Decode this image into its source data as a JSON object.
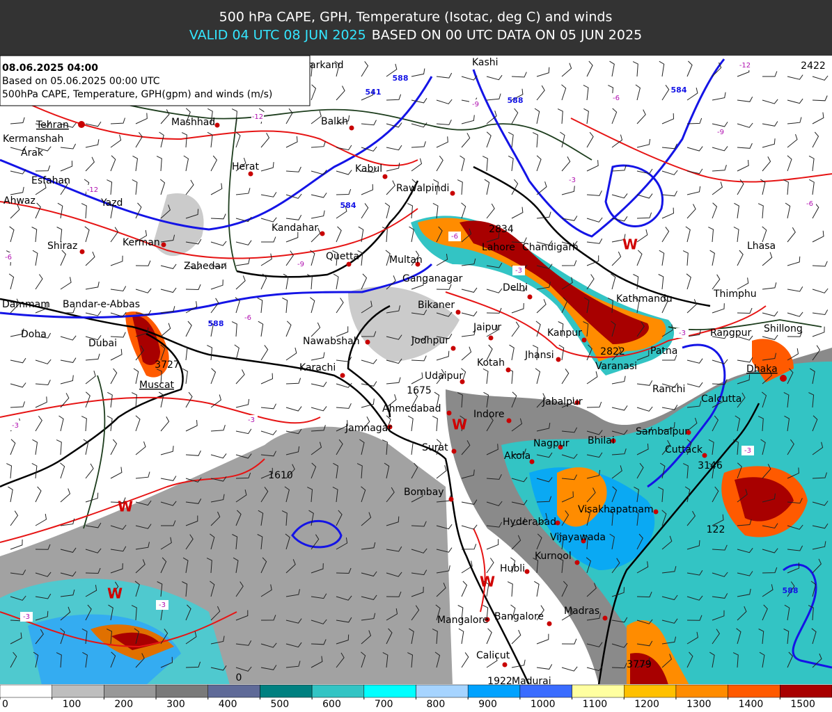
{
  "header": {
    "title": "500 hPa CAPE, GPH, Temperature (Isotac, deg C) and winds",
    "valid": "VALID 04 UTC 08 JUN 2025",
    "based": "BASED ON 00 UTC DATA ON 05 JUN 2025"
  },
  "info_box": {
    "date": "08.06.2025 04:00",
    "based": "Based on 05.06.2025 00:00 UTC",
    "fields": "500hPa CAPE, Temperature, GPH(gpm) and winds (m/s)"
  },
  "cities": [
    "Tehran",
    "Kermanshah",
    "Arak",
    "Esfahan",
    "Ahwaz",
    "Yazd",
    "Shiraz",
    "Kerman",
    "Zahedan",
    "Mashhad",
    "Herat",
    "Kandahar",
    "Quetta",
    "Balkh",
    "Kabul",
    "Rawalpindi",
    "Multan",
    "Ganganagar",
    "Bikaner",
    "Lahore",
    "Chandigarh",
    "Delhi",
    "Jaipur",
    "Jodhpur",
    "Kotah",
    "Jhansi",
    "Kanpur",
    "Udaipur",
    "Ahmedabad",
    "Indore",
    "Jabalpur",
    "Jamnagar",
    "Surat",
    "Nagpur",
    "Bhilai",
    "Akola",
    "Sambalpur",
    "Cuttack",
    "Bombay",
    "Hyderabad",
    "Visakhapatnam",
    "Vijayawada",
    "Kurnool",
    "Hubli",
    "Madras",
    "Bangalore",
    "Mangalore",
    "Calicut",
    "Madurai",
    "Karachi",
    "Nawabshah",
    "Dubai",
    "Doha",
    "Dammam",
    "Bandar-e-Abbas",
    "Muscat",
    "Kathmandu",
    "Thimphu",
    "Lhasa",
    "Rangpur",
    "Shillong",
    "Dhaka",
    "Calcutta",
    "Ranchi",
    "Patna",
    "Varanasi",
    "Kashi",
    "arkand"
  ],
  "gph_labels": [
    541,
    584,
    588,
    584,
    588,
    588,
    588
  ],
  "cape_labels": [
    2834,
    2822,
    3727,
    1675,
    1610,
    3779,
    122,
    3146,
    0,
    1922,
    2422
  ],
  "temp_labels": [
    -12,
    -12,
    -9,
    -9,
    -6,
    -6,
    -6,
    -6,
    -3,
    -3,
    -3,
    -3,
    -3,
    -3,
    -3,
    -3,
    -12,
    -9,
    -6
  ],
  "markers": [
    "W",
    "W",
    "W",
    "W",
    "W"
  ],
  "colorbar": {
    "ticks": [
      0,
      100,
      200,
      300,
      400,
      500,
      600,
      700,
      800,
      900,
      1000,
      1100,
      1200,
      1300,
      1400,
      1500
    ],
    "colors": [
      "#ffffff",
      "#bebebe",
      "#989898",
      "#7a7a7a",
      "#5f6a98",
      "#008080",
      "#33c4c4",
      "#00ffff",
      "#a6d4ff",
      "#00a2ff",
      "#3a6cff",
      "#ffffa0",
      "#ffc000",
      "#ff8c00",
      "#ff5a00",
      "#a80000"
    ]
  }
}
